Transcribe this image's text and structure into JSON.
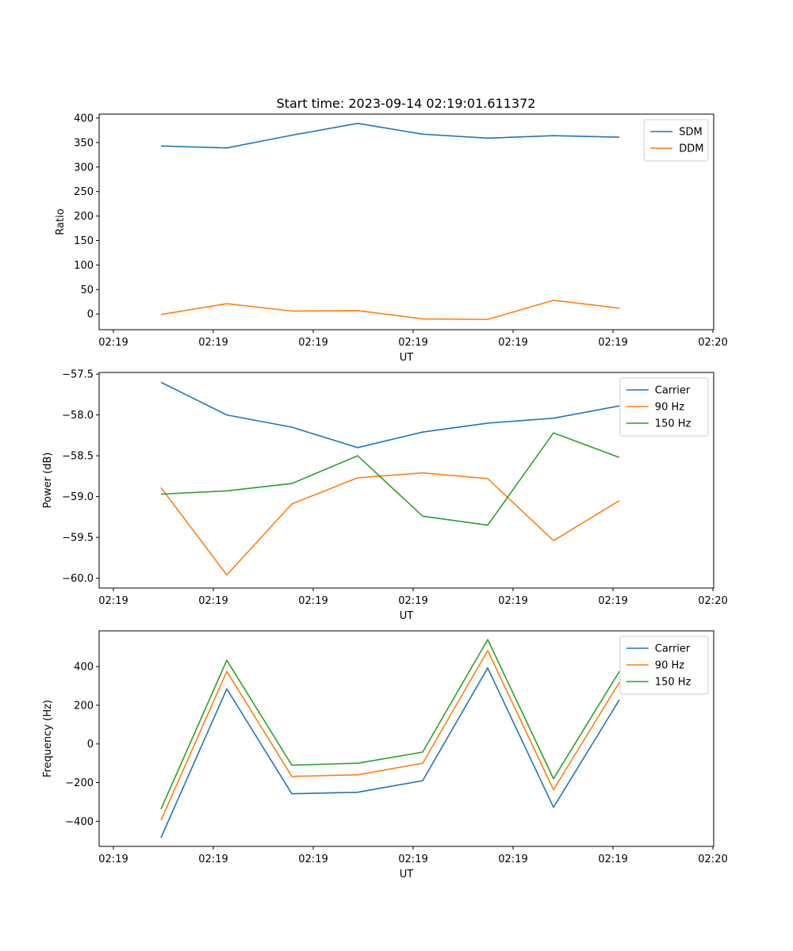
{
  "figure": {
    "title": "Start time: 2023-09-14 02:19:01.611372"
  },
  "chart_data": [
    {
      "type": "line",
      "title": "Start time: 2023-09-14 02:19:01.611372",
      "xlabel": "UT",
      "ylabel": "Ratio",
      "x_tick_labels": [
        "02:19",
        "02:19",
        "02:19",
        "02:19",
        "02:19",
        "02:19",
        "02:20"
      ],
      "y_ticks": [
        0,
        50,
        100,
        150,
        200,
        250,
        300,
        350,
        400
      ],
      "y_tick_labels": [
        "0",
        "50",
        "100",
        "150",
        "200",
        "250",
        "300",
        "350",
        "400"
      ],
      "ylim": [
        -32,
        408
      ],
      "legend_position": "top-right",
      "series": [
        {
          "name": "SDM",
          "color": "#1f77b4",
          "values": [
            343,
            339,
            365,
            389,
            367,
            359,
            364,
            361
          ]
        },
        {
          "name": "DDM",
          "color": "#ff7f0e",
          "values": [
            -1,
            21,
            6,
            7,
            -10,
            -11,
            28,
            12
          ]
        }
      ]
    },
    {
      "type": "line",
      "xlabel": "UT",
      "ylabel": "Power (dB)",
      "x_tick_labels": [
        "02:19",
        "02:19",
        "02:19",
        "02:19",
        "02:19",
        "02:19",
        "02:20"
      ],
      "y_ticks": [
        -57.5,
        -58.0,
        -58.5,
        -59.0,
        -59.5,
        -60.0
      ],
      "y_tick_labels": [
        "−57.5",
        "−58.0",
        "−58.5",
        "−59.0",
        "−59.5",
        "−60.0"
      ],
      "ylim": [
        -60.12,
        -57.48
      ],
      "legend_position": "top-right",
      "series": [
        {
          "name": "Carrier",
          "color": "#1f77b4",
          "values": [
            -57.6,
            -58.0,
            -58.15,
            -58.4,
            -58.21,
            -58.1,
            -58.04,
            -57.89
          ]
        },
        {
          "name": "90 Hz",
          "color": "#ff7f0e",
          "values": [
            -58.89,
            -59.96,
            -59.09,
            -58.77,
            -58.71,
            -58.78,
            -59.54,
            -59.05
          ]
        },
        {
          "name": "150 Hz",
          "color": "#2ca02c",
          "values": [
            -58.97,
            -58.93,
            -58.84,
            -58.5,
            -59.24,
            -59.35,
            -58.22,
            -58.52
          ]
        }
      ]
    },
    {
      "type": "line",
      "xlabel": "UT",
      "ylabel": "Frequency (Hz)",
      "x_tick_labels": [
        "02:19",
        "02:19",
        "02:19",
        "02:19",
        "02:19",
        "02:19",
        "02:20"
      ],
      "y_ticks": [
        400,
        200,
        0,
        -200,
        -400
      ],
      "y_tick_labels": [
        "400",
        "200",
        "0",
        "−200",
        "−400"
      ],
      "ylim": [
        -530,
        585
      ],
      "legend_position": "top-right",
      "series": [
        {
          "name": "Carrier",
          "color": "#1f77b4",
          "values": [
            -485,
            285,
            -258,
            -250,
            -190,
            393,
            -328,
            228
          ]
        },
        {
          "name": "90 Hz",
          "color": "#ff7f0e",
          "values": [
            -395,
            375,
            -168,
            -160,
            -100,
            483,
            -237,
            318
          ]
        },
        {
          "name": "150 Hz",
          "color": "#2ca02c",
          "values": [
            -337,
            433,
            -110,
            -100,
            -42,
            540,
            -180,
            375
          ]
        }
      ]
    }
  ]
}
